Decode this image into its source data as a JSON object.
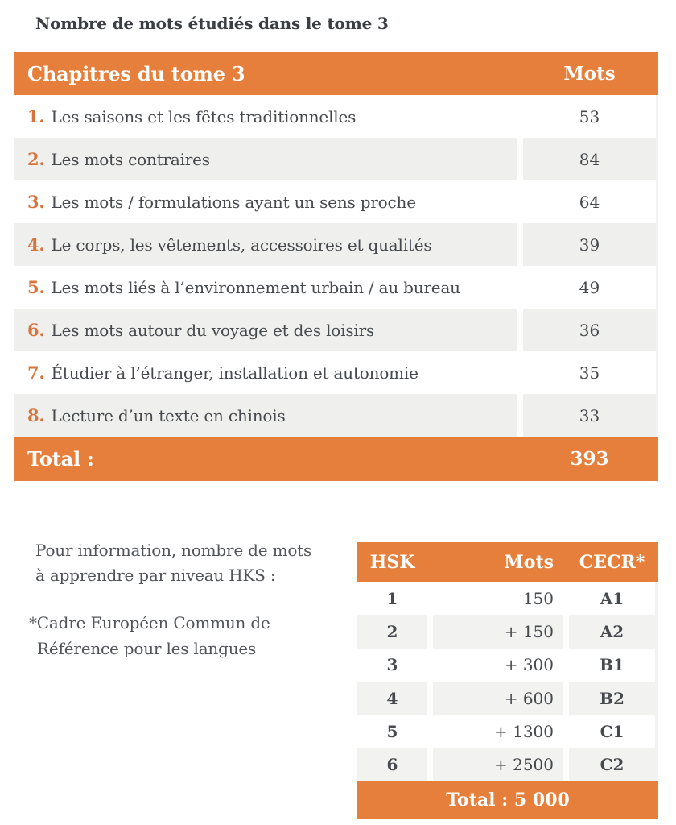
{
  "page": {
    "title": "Nombre de mots étudiés dans le tome 3"
  },
  "colors": {
    "accent_orange": "#e67f3b",
    "chapter_number_orange": "#d8743b",
    "row_alt_gray": "#efefee",
    "text_dark": "#46494d"
  },
  "chapters_table": {
    "header": {
      "chapters": "Chapitres du tome 3",
      "mots": "Mots"
    },
    "rows": [
      {
        "num": "1.",
        "label": "Les saisons et les fêtes traditionnelles",
        "mots": "53"
      },
      {
        "num": "2.",
        "label": "Les mots contraires",
        "mots": "84"
      },
      {
        "num": "3.",
        "label": "Les mots / formulations ayant un sens proche",
        "mots": "64"
      },
      {
        "num": "4.",
        "label": "Le corps, les vêtements, accessoires et qualités",
        "mots": "39"
      },
      {
        "num": "5.",
        "label": "Les mots liés à l’environnement urbain / au bureau",
        "mots": "49"
      },
      {
        "num": "6.",
        "label": "Les mots autour du voyage et des loisirs",
        "mots": "36"
      },
      {
        "num": "7.",
        "label": "Étudier à l’étranger, installation et autonomie",
        "mots": "35"
      },
      {
        "num": "8.",
        "label": "Lecture d’un texte en chinois",
        "mots": "33"
      }
    ],
    "total_label": "Total :",
    "total_value": "393"
  },
  "info": {
    "line1": "Pour information, nombre de mots",
    "line2": "à apprendre par niveau HKS :",
    "note_line1": "*Cadre Européen Commun de",
    "note_line2": "Référence pour les langues"
  },
  "hsk_table": {
    "header": {
      "hsk": "HSK",
      "mots": "Mots",
      "cecr": "CECR*"
    },
    "rows": [
      {
        "hsk": "1",
        "mots": "150",
        "cecr": "A1"
      },
      {
        "hsk": "2",
        "mots": "+ 150",
        "cecr": "A2"
      },
      {
        "hsk": "3",
        "mots": "+ 300",
        "cecr": "B1"
      },
      {
        "hsk": "4",
        "mots": "+ 600",
        "cecr": "B2"
      },
      {
        "hsk": "5",
        "mots": "+ 1300",
        "cecr": "C1"
      },
      {
        "hsk": "6",
        "mots": "+ 2500",
        "cecr": "C2"
      }
    ],
    "total": "Total : 5 000"
  }
}
